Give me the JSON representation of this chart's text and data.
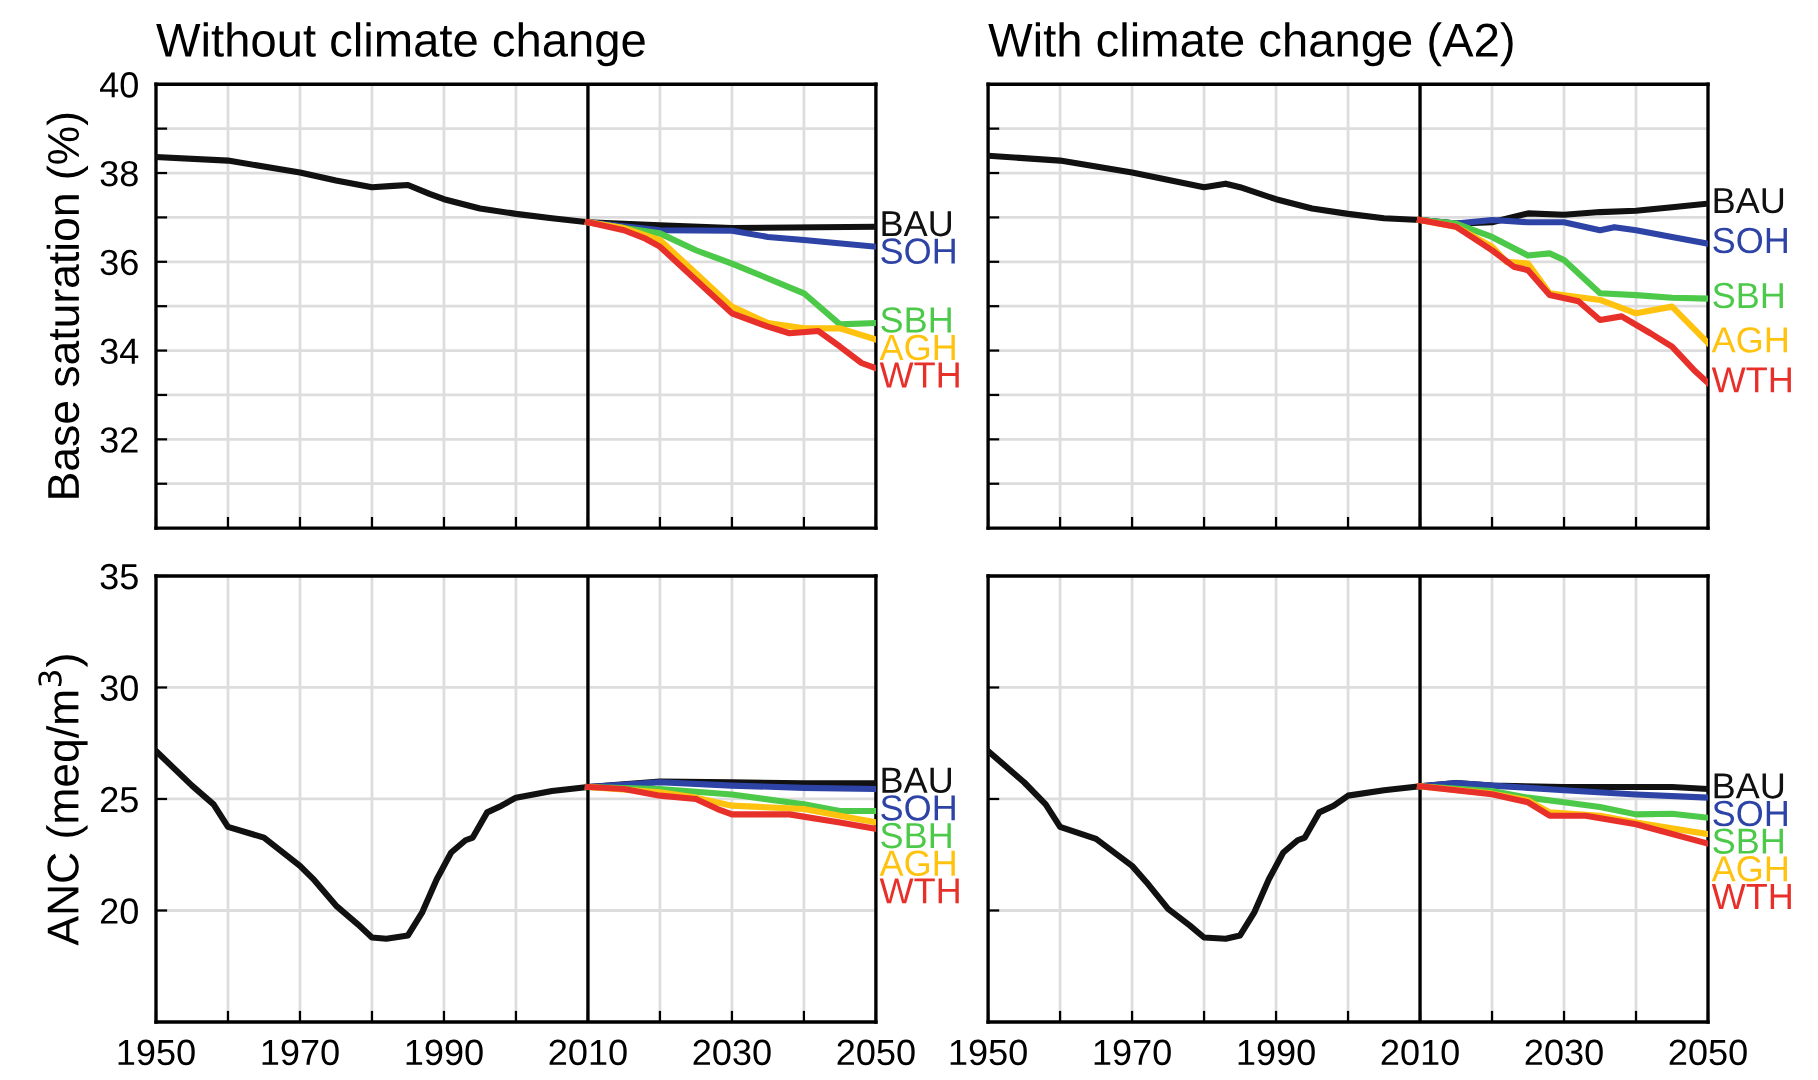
{
  "chart_data": [
    {
      "type": "line",
      "title": "Without climate change",
      "ylabel": "Base saturation (%)",
      "xlim": [
        1950,
        2050
      ],
      "xticks": [
        1950,
        {
          "value": 1960,
          "label": null
        },
        1970,
        {
          "value": 1980,
          "label": null
        },
        1990,
        {
          "value": 2000,
          "label": null
        },
        2010,
        {
          "value": 2020,
          "label": null
        },
        2030,
        {
          "value": 2040,
          "label": null
        },
        2050
      ],
      "ylim": [
        30,
        40
      ],
      "yticks": [
        {
          "value": 31,
          "label": null
        },
        32,
        {
          "value": 33,
          "label": null
        },
        34,
        {
          "value": 35,
          "label": null
        },
        36,
        {
          "value": 37,
          "label": null
        },
        38,
        {
          "value": 39,
          "label": null
        },
        40
      ],
      "tick_labels": "y",
      "grid": true,
      "ref_lines": [
        {
          "axis": "x",
          "value": 2010,
          "color": "#000000"
        }
      ],
      "series": [
        {
          "name": "BAU",
          "color": "#111111",
          "x": [
            1950,
            1960,
            1970,
            1975,
            1980,
            1983,
            1985,
            1988,
            1990,
            1995,
            2000,
            2005,
            2010,
            2020,
            2030,
            2050
          ],
          "values": [
            38.36,
            38.28,
            38.01,
            37.83,
            37.68,
            37.71,
            37.73,
            37.53,
            37.41,
            37.2,
            37.08,
            36.98,
            36.89,
            36.82,
            36.76,
            36.79
          ]
        },
        {
          "name": "SOH",
          "color": "#2d43a6",
          "x": [
            2010,
            2020,
            2030,
            2035,
            2040,
            2050
          ],
          "values": [
            36.89,
            36.71,
            36.7,
            36.56,
            36.49,
            36.34
          ]
        },
        {
          "name": "SBH",
          "color": "#4dc94a",
          "x": [
            2010,
            2015,
            2020,
            2025,
            2030,
            2040,
            2045,
            2050
          ],
          "values": [
            36.89,
            36.76,
            36.64,
            36.26,
            35.96,
            35.29,
            34.59,
            34.62
          ]
        },
        {
          "name": "AGH",
          "color": "#ffc20e",
          "x": [
            2010,
            2015,
            2020,
            2025,
            2030,
            2035,
            2040,
            2045,
            2050
          ],
          "values": [
            36.89,
            36.76,
            36.49,
            35.74,
            34.99,
            34.62,
            34.5,
            34.5,
            34.25
          ]
        },
        {
          "name": "WTH",
          "color": "#e8302a",
          "x": [
            2010,
            2015,
            2018,
            2020,
            2025,
            2030,
            2035,
            2038,
            2042,
            2045,
            2048,
            2050
          ],
          "values": [
            36.89,
            36.71,
            36.52,
            36.34,
            35.59,
            34.84,
            34.54,
            34.39,
            34.44,
            34.09,
            33.72,
            33.6
          ]
        }
      ]
    },
    {
      "type": "line",
      "title": "With climate change (A2)",
      "xlim": [
        1950,
        2050
      ],
      "xticks": [
        1950,
        {
          "value": 1960,
          "label": null
        },
        1970,
        {
          "value": 1980,
          "label": null
        },
        1990,
        {
          "value": 2000,
          "label": null
        },
        2010,
        {
          "value": 2020,
          "label": null
        },
        2030,
        {
          "value": 2040,
          "label": null
        },
        2050
      ],
      "ylim": [
        30,
        40
      ],
      "yticks": [
        {
          "value": 31,
          "label": null
        },
        32,
        {
          "value": 33,
          "label": null
        },
        34,
        {
          "value": 35,
          "label": null
        },
        36,
        {
          "value": 37,
          "label": null
        },
        38,
        {
          "value": 39,
          "label": null
        },
        40
      ],
      "tick_labels": false,
      "grid": true,
      "ref_lines": [
        {
          "axis": "x",
          "value": 2010,
          "color": "#000000"
        }
      ],
      "series": [
        {
          "name": "BAU",
          "color": "#111111",
          "x": [
            1950,
            1960,
            1970,
            1980,
            1983,
            1985,
            1990,
            1995,
            2000,
            2005,
            2010,
            2015,
            2020,
            2025,
            2030,
            2035,
            2040,
            2045,
            2050
          ],
          "values": [
            38.39,
            38.28,
            38.01,
            37.68,
            37.76,
            37.68,
            37.41,
            37.2,
            37.08,
            36.98,
            36.94,
            36.86,
            36.89,
            37.09,
            37.06,
            37.12,
            37.15,
            37.23,
            37.31
          ]
        },
        {
          "name": "SOH",
          "color": "#2d43a6",
          "x": [
            2010,
            2015,
            2020,
            2025,
            2030,
            2035,
            2037,
            2040,
            2045,
            2050
          ],
          "values": [
            36.94,
            36.86,
            36.94,
            36.89,
            36.89,
            36.71,
            36.78,
            36.71,
            36.56,
            36.41
          ]
        },
        {
          "name": "SBH",
          "color": "#4dc94a",
          "x": [
            2010,
            2015,
            2020,
            2025,
            2028,
            2030,
            2035,
            2040,
            2045,
            2050
          ],
          "values": [
            36.94,
            36.86,
            36.56,
            36.14,
            36.19,
            36.04,
            35.29,
            35.25,
            35.19,
            35.17
          ]
        },
        {
          "name": "AGH",
          "color": "#ffc20e",
          "x": [
            2010,
            2015,
            2020,
            2022,
            2025,
            2028,
            2035,
            2040,
            2045,
            2050
          ],
          "values": [
            36.94,
            36.79,
            36.34,
            36.0,
            35.96,
            35.29,
            35.14,
            34.84,
            34.99,
            34.17
          ]
        },
        {
          "name": "WTH",
          "color": "#e8302a",
          "x": [
            2010,
            2015,
            2020,
            2023,
            2025,
            2028,
            2032,
            2035,
            2038,
            2042,
            2045,
            2048,
            2050
          ],
          "values": [
            36.94,
            36.79,
            36.26,
            35.89,
            35.81,
            35.25,
            35.11,
            34.69,
            34.77,
            34.39,
            34.09,
            33.57,
            33.27
          ]
        }
      ]
    },
    {
      "type": "line",
      "ylabel": "ANC (meq/m$^{3}$)",
      "xlim": [
        1950,
        2050
      ],
      "xticks": [
        1950,
        {
          "value": 1960,
          "label": null
        },
        1970,
        {
          "value": 1980,
          "label": null
        },
        1990,
        {
          "value": 2000,
          "label": null
        },
        2010,
        {
          "value": 2020,
          "label": null
        },
        2030,
        {
          "value": 2040,
          "label": null
        },
        2050
      ],
      "ylim": [
        15,
        35
      ],
      "yticks": [
        20,
        25,
        30,
        35
      ],
      "grid": true,
      "ref_lines": [
        {
          "axis": "x",
          "value": 2010,
          "color": "#000000"
        }
      ],
      "series": [
        {
          "name": "BAU",
          "color": "#111111",
          "x": [
            1950,
            1955,
            1958,
            1960,
            1965,
            1970,
            1972,
            1975,
            1978,
            1980,
            1982,
            1985,
            1987,
            1989,
            1991,
            1993,
            1994,
            1996,
            1998,
            2000,
            2005,
            2010,
            2020,
            2030,
            2040,
            2050
          ],
          "values": [
            27.15,
            25.6,
            24.76,
            23.75,
            23.27,
            22.0,
            21.36,
            20.22,
            19.39,
            18.79,
            18.73,
            18.88,
            19.93,
            21.4,
            22.6,
            23.15,
            23.27,
            24.4,
            24.7,
            25.06,
            25.36,
            25.54,
            25.78,
            25.75,
            25.7,
            25.7
          ]
        },
        {
          "name": "SOH",
          "color": "#2d43a6",
          "x": [
            2010,
            2020,
            2030,
            2040,
            2050
          ],
          "values": [
            25.54,
            25.75,
            25.6,
            25.5,
            25.45
          ]
        },
        {
          "name": "SBH",
          "color": "#4dc94a",
          "x": [
            2010,
            2020,
            2030,
            2040,
            2045,
            2050
          ],
          "values": [
            25.54,
            25.45,
            25.2,
            24.76,
            24.46,
            24.46
          ]
        },
        {
          "name": "AGH",
          "color": "#ffc20e",
          "x": [
            2010,
            2020,
            2025,
            2030,
            2040,
            2045,
            2050
          ],
          "values": [
            25.54,
            25.3,
            25.06,
            24.7,
            24.55,
            24.25,
            23.95
          ]
        },
        {
          "name": "WTH",
          "color": "#e8302a",
          "x": [
            2010,
            2015,
            2020,
            2025,
            2028,
            2030,
            2038,
            2045,
            2050
          ],
          "values": [
            25.54,
            25.45,
            25.15,
            25.0,
            24.55,
            24.31,
            24.31,
            23.95,
            23.66
          ]
        }
      ]
    },
    {
      "type": "line",
      "xlim": [
        1950,
        2050
      ],
      "xticks": [
        1950,
        {
          "value": 1960,
          "label": null
        },
        1970,
        {
          "value": 1980,
          "label": null
        },
        1990,
        {
          "value": 2000,
          "label": null
        },
        2010,
        {
          "value": 2020,
          "label": null
        },
        2030,
        {
          "value": 2040,
          "label": null
        },
        2050
      ],
      "ylim": [
        15,
        35
      ],
      "yticks": [
        {
          "value": 20,
          "label": null
        },
        {
          "value": 25,
          "label": null
        },
        {
          "value": 30,
          "label": null
        },
        {
          "value": 35,
          "label": null
        }
      ],
      "tick_labels": "x",
      "grid": true,
      "ref_lines": [
        {
          "axis": "x",
          "value": 2010,
          "color": "#000000"
        }
      ],
      "series": [
        {
          "name": "BAU",
          "color": "#111111",
          "x": [
            1950,
            1955,
            1958,
            1960,
            1965,
            1970,
            1972,
            1975,
            1978,
            1980,
            1983,
            1985,
            1987,
            1989,
            1991,
            1993,
            1994,
            1996,
            1998,
            2000,
            2005,
            2010,
            2015,
            2020,
            2030,
            2045,
            2050
          ],
          "values": [
            27.15,
            25.75,
            24.76,
            23.75,
            23.21,
            22.0,
            21.27,
            20.07,
            19.33,
            18.79,
            18.73,
            18.88,
            19.93,
            21.4,
            22.6,
            23.15,
            23.27,
            24.4,
            24.7,
            25.15,
            25.39,
            25.57,
            25.72,
            25.6,
            25.54,
            25.54,
            25.45
          ]
        },
        {
          "name": "SOH",
          "color": "#2d43a6",
          "x": [
            2010,
            2015,
            2020,
            2030,
            2040,
            2050
          ],
          "values": [
            25.57,
            25.72,
            25.6,
            25.39,
            25.2,
            25.06
          ]
        },
        {
          "name": "SBH",
          "color": "#4dc94a",
          "x": [
            2010,
            2020,
            2025,
            2030,
            2035,
            2040,
            2045,
            2050
          ],
          "values": [
            25.57,
            25.36,
            25.06,
            24.85,
            24.64,
            24.31,
            24.34,
            24.16
          ]
        },
        {
          "name": "AGH",
          "color": "#ffc20e",
          "x": [
            2010,
            2020,
            2025,
            2028,
            2035,
            2040,
            2050
          ],
          "values": [
            25.57,
            25.24,
            24.94,
            24.4,
            24.25,
            23.95,
            23.42
          ]
        },
        {
          "name": "WTH",
          "color": "#e8302a",
          "x": [
            2010,
            2020,
            2025,
            2028,
            2033,
            2040,
            2050
          ],
          "values": [
            25.57,
            25.21,
            24.85,
            24.25,
            24.25,
            23.87,
            23.0
          ]
        }
      ]
    }
  ]
}
